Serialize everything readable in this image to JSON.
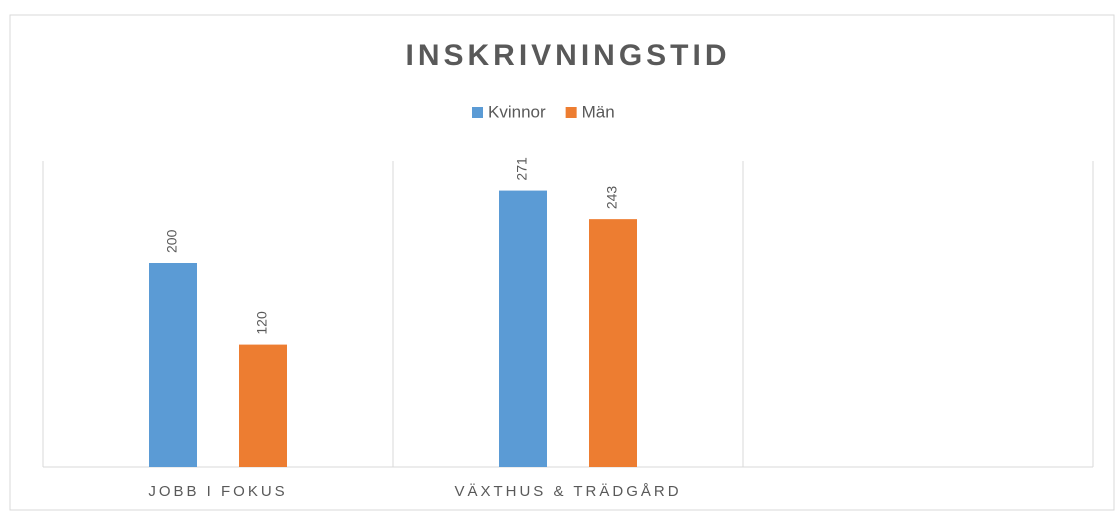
{
  "chart_data": {
    "type": "bar",
    "title": "INSKRIVNINGSTID",
    "categories": [
      "JOBB I FOKUS",
      "VÄXTHUS & TRÄDGÅRD",
      null
    ],
    "series": [
      {
        "name": "Kvinnor",
        "color": "#5b9bd5",
        "values": [
          200,
          271,
          null
        ]
      },
      {
        "name": "Män",
        "color": "#ed7d31",
        "values": [
          120,
          243,
          null
        ]
      }
    ],
    "ylim": [
      0,
      300
    ],
    "legend": "top",
    "data_labels": true
  }
}
